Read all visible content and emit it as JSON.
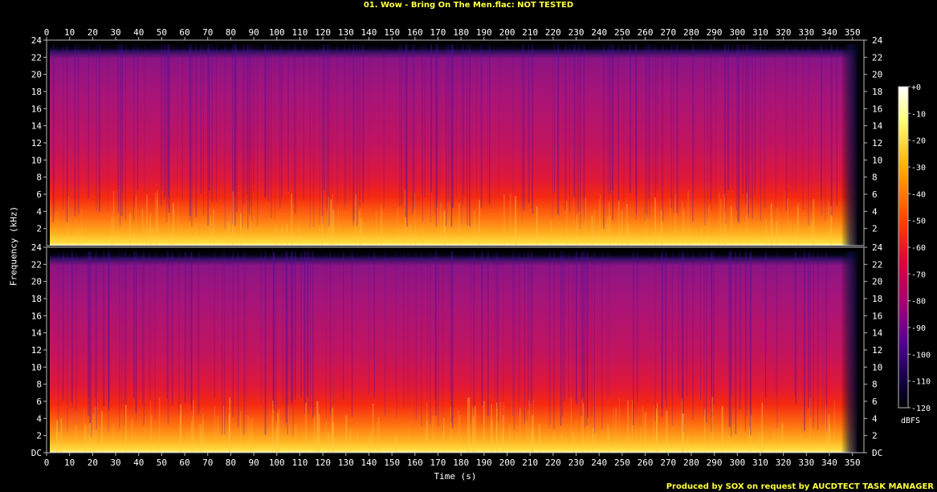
{
  "chart_data": {
    "type": "heatmap",
    "title": "01. Wow - Bring On The Men.flac: NOT TESTED",
    "xlabel": "Time (s)",
    "ylabel": "Frequency (kHz)",
    "xlim": [
      0,
      355
    ],
    "ylim": [
      0,
      24
    ],
    "x_ticks": [
      "0",
      "10",
      "20",
      "30",
      "40",
      "50",
      "60",
      "70",
      "80",
      "90",
      "100",
      "110",
      "120",
      "130",
      "140",
      "150",
      "160",
      "170",
      "180",
      "190",
      "200",
      "210",
      "220",
      "230",
      "240",
      "250",
      "260",
      "270",
      "280",
      "290",
      "300",
      "310",
      "320",
      "330",
      "340",
      "350"
    ],
    "y_ticks_top": [
      "2",
      "4",
      "6",
      "8",
      "10",
      "12",
      "14",
      "16",
      "18",
      "20",
      "22",
      "24"
    ],
    "y_ticks_bottom": [
      "DC",
      "2",
      "4",
      "6",
      "8",
      "10",
      "12",
      "14",
      "16",
      "18",
      "20",
      "22",
      "24"
    ],
    "channels": 2,
    "duration_s": 352,
    "spectral_cutoff_khz": 23.5,
    "colorbar": {
      "label": "dBFS",
      "ticks": [
        "+0",
        "-10",
        "-20",
        "-30",
        "-40",
        "-50",
        "-60",
        "-70",
        "-80",
        "-90",
        "-100",
        "-110",
        "-120"
      ],
      "range": [
        -120,
        0
      ]
    },
    "grid": false
  },
  "footer": "Produced by SOX on request by AUCDTECT TASK MANAGER"
}
